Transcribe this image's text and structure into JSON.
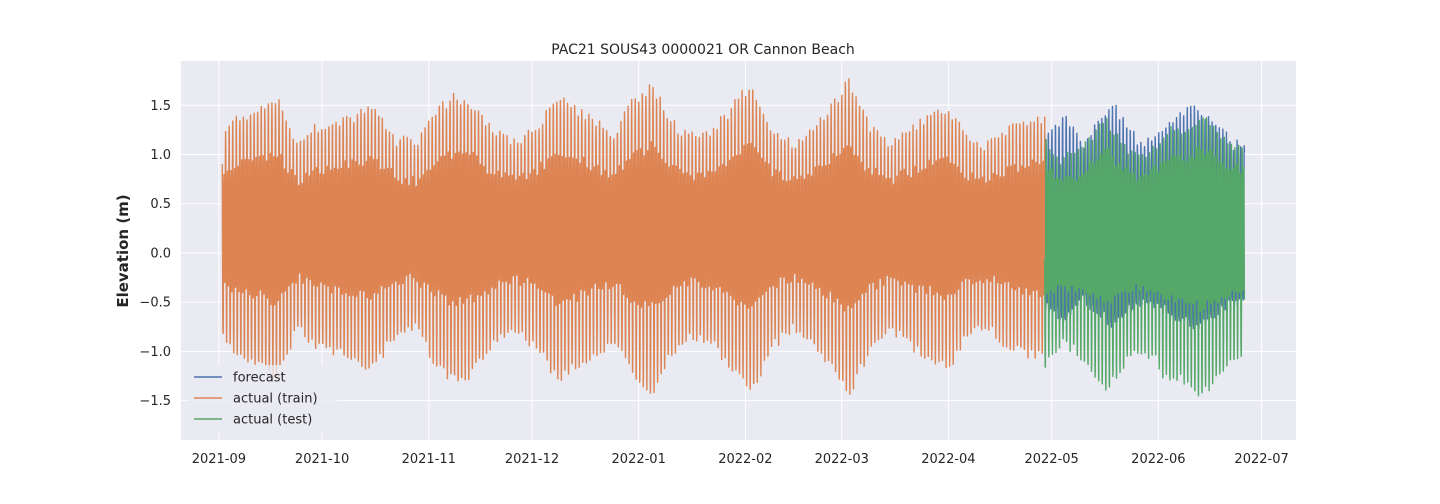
{
  "chart_data": {
    "type": "line",
    "title": "PAC21 SOUS43 0000021 OR Cannon Beach",
    "xlabel": "",
    "ylabel": "Elevation (m)",
    "xlim": [
      "2021-08-21",
      "2022-07-11"
    ],
    "ylim": [
      -1.9,
      1.95
    ],
    "x_ticks": [
      "2021-09",
      "2021-10",
      "2021-11",
      "2021-12",
      "2022-01",
      "2022-02",
      "2022-03",
      "2022-04",
      "2022-05",
      "2022-06",
      "2022-07"
    ],
    "y_ticks": [
      -1.5,
      -1.0,
      -0.5,
      0.0,
      0.5,
      1.0,
      1.5
    ],
    "y_tick_labels": [
      "−1.5",
      "−1.0",
      "−0.5",
      "0.0",
      "0.5",
      "1.0",
      "1.5"
    ],
    "grid": true,
    "legend_position": "lower-left",
    "background": "#eaeaf2",
    "series": [
      {
        "name": "forecast",
        "color": "#4c72b0",
        "start": "2022-04-29",
        "end": "2022-06-26",
        "mean": 0.18,
        "envelope": [
          [
            "2022-04-29",
            1.0
          ],
          [
            "2022-05-05",
            1.25
          ],
          [
            "2022-05-10",
            0.9
          ],
          [
            "2022-05-14",
            1.1
          ],
          [
            "2022-05-19",
            1.3
          ],
          [
            "2022-05-26",
            0.95
          ],
          [
            "2022-06-01",
            1.0
          ],
          [
            "2022-06-06",
            1.2
          ],
          [
            "2022-06-12",
            1.3
          ],
          [
            "2022-06-17",
            1.15
          ],
          [
            "2022-06-22",
            0.95
          ],
          [
            "2022-06-26",
            0.9
          ]
        ]
      },
      {
        "name": "actual (train)",
        "color": "#dd8452",
        "start": "2021-09-02",
        "end": "2022-04-29",
        "mean": 0.2,
        "envelope": [
          [
            "2021-09-02",
            1.1
          ],
          [
            "2021-09-07",
            1.35
          ],
          [
            "2021-09-12",
            1.4
          ],
          [
            "2021-09-18",
            1.55
          ],
          [
            "2021-09-24",
            1.0
          ],
          [
            "2021-09-29",
            1.2
          ],
          [
            "2021-10-04",
            1.25
          ],
          [
            "2021-10-10",
            1.35
          ],
          [
            "2021-10-16",
            1.45
          ],
          [
            "2021-10-22",
            1.1
          ],
          [
            "2021-10-28",
            1.0
          ],
          [
            "2021-11-03",
            1.4
          ],
          [
            "2021-11-09",
            1.6
          ],
          [
            "2021-11-15",
            1.45
          ],
          [
            "2021-11-20",
            1.15
          ],
          [
            "2021-11-26",
            1.05
          ],
          [
            "2021-12-02",
            1.2
          ],
          [
            "2021-12-08",
            1.55
          ],
          [
            "2021-12-13",
            1.45
          ],
          [
            "2021-12-19",
            1.3
          ],
          [
            "2021-12-25",
            1.15
          ],
          [
            "2021-12-31",
            1.55
          ],
          [
            "2022-01-05",
            1.7
          ],
          [
            "2022-01-11",
            1.25
          ],
          [
            "2022-01-17",
            1.1
          ],
          [
            "2022-01-23",
            1.2
          ],
          [
            "2022-01-29",
            1.5
          ],
          [
            "2022-02-03",
            1.7
          ],
          [
            "2022-02-09",
            1.2
          ],
          [
            "2022-02-15",
            1.0
          ],
          [
            "2022-02-21",
            1.2
          ],
          [
            "2022-02-27",
            1.5
          ],
          [
            "2022-03-03",
            1.75
          ],
          [
            "2022-03-09",
            1.25
          ],
          [
            "2022-03-15",
            1.0
          ],
          [
            "2022-03-21",
            1.2
          ],
          [
            "2022-03-27",
            1.35
          ],
          [
            "2022-04-01",
            1.45
          ],
          [
            "2022-04-06",
            1.1
          ],
          [
            "2022-04-12",
            1.0
          ],
          [
            "2022-04-18",
            1.2
          ],
          [
            "2022-04-24",
            1.3
          ],
          [
            "2022-04-29",
            1.35
          ]
        ]
      },
      {
        "name": "actual (test)",
        "color": "#55a868",
        "start": "2022-04-29",
        "end": "2022-06-26",
        "mean": 0.1,
        "envelope": [
          [
            "2022-04-29",
            1.3
          ],
          [
            "2022-05-03",
            1.05
          ],
          [
            "2022-05-08",
            1.1
          ],
          [
            "2022-05-13",
            1.35
          ],
          [
            "2022-05-17",
            1.55
          ],
          [
            "2022-05-21",
            1.3
          ],
          [
            "2022-05-26",
            1.1
          ],
          [
            "2022-05-31",
            1.2
          ],
          [
            "2022-06-04",
            1.45
          ],
          [
            "2022-06-09",
            1.4
          ],
          [
            "2022-06-13",
            1.6
          ],
          [
            "2022-06-17",
            1.45
          ],
          [
            "2022-06-22",
            1.25
          ],
          [
            "2022-06-26",
            1.2
          ]
        ]
      }
    ]
  }
}
